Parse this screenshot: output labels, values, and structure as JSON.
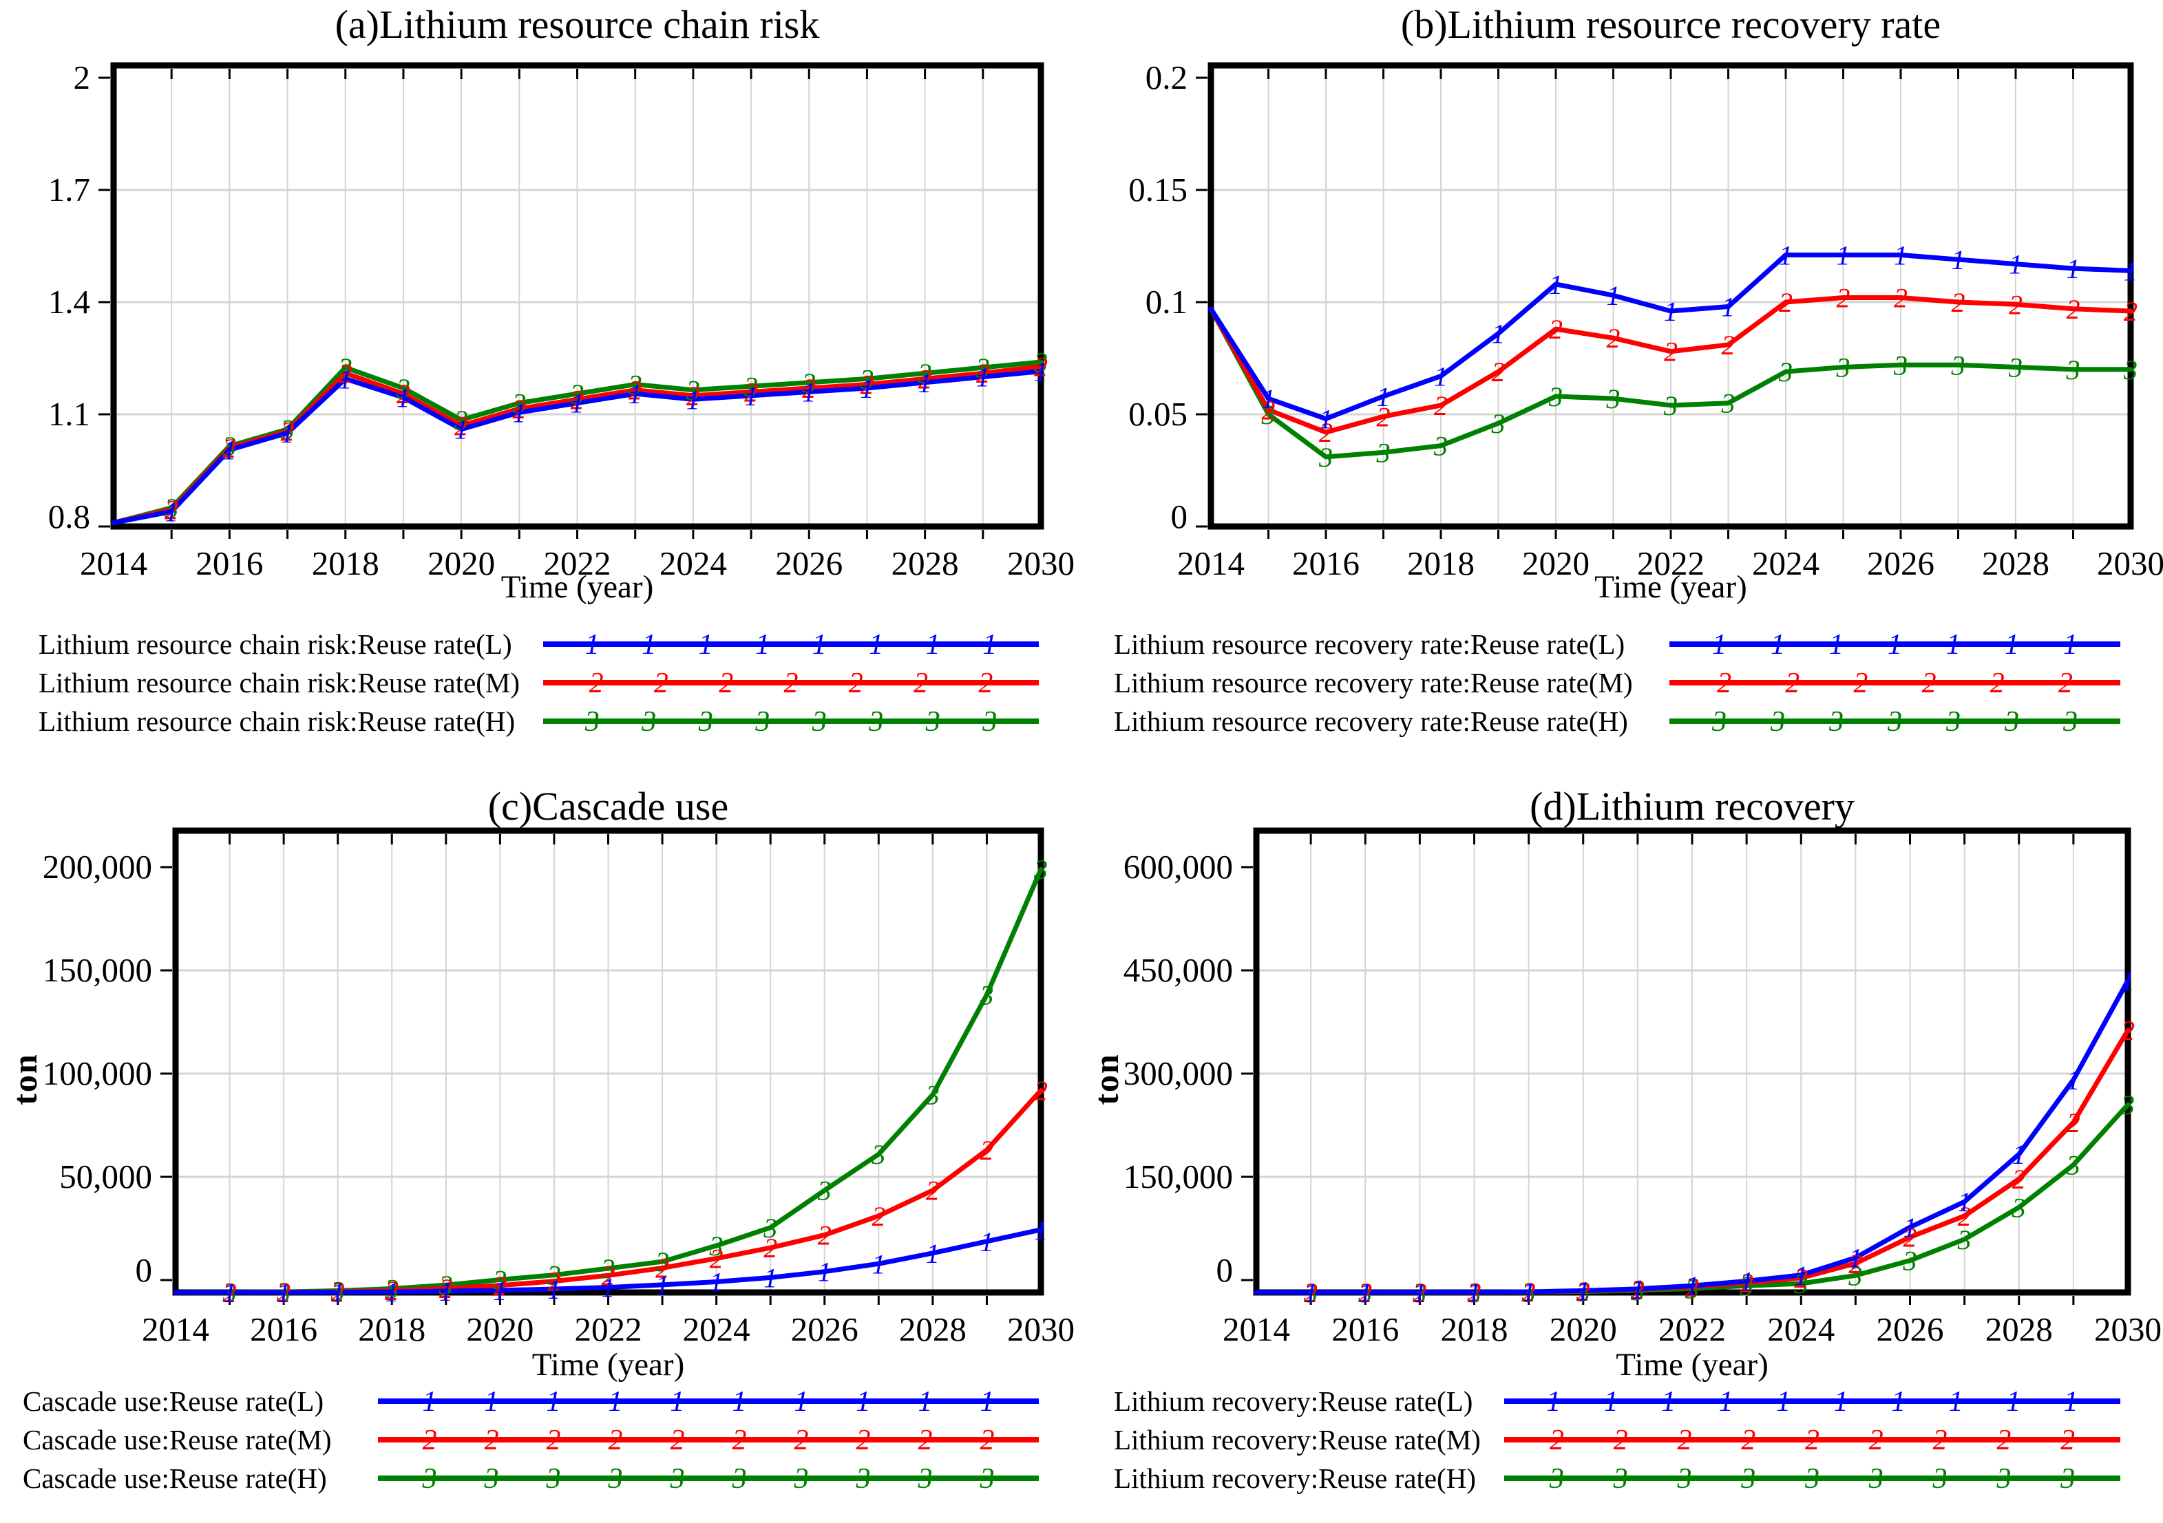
{
  "colors": {
    "axis": "#000000",
    "grid": "#d4d4d4",
    "reuse_low": "#0000ff",
    "reuse_mid": "#ff0000",
    "reuse_high": "#008000"
  },
  "chart_data": [
    {
      "type": "line",
      "title": "(a)Lithium resource chain risk",
      "xlabel": "Time (year)",
      "ylabel": "",
      "x": [
        2014,
        2015,
        2016,
        2017,
        2018,
        2019,
        2020,
        2021,
        2022,
        2023,
        2024,
        2025,
        2026,
        2027,
        2028,
        2029,
        2030
      ],
      "xtick_labels": [
        "2014",
        "2016",
        "2018",
        "2020",
        "2022",
        "2024",
        "2026",
        "2028",
        "2030"
      ],
      "ytick_labels": [
        "2",
        "1.7",
        "1.4",
        "1.1",
        "0.8"
      ],
      "ylim": [
        0.8,
        2.0
      ],
      "grid": true,
      "legend_position": "bottom",
      "legend_marker_counts": [
        8,
        7,
        8
      ],
      "series": [
        {
          "name": "Lithium resource chain risk:Reuse rate(L)",
          "marker": "1",
          "color": "#0000ff",
          "values": [
            0.81,
            0.84,
            1.005,
            1.05,
            1.195,
            1.145,
            1.06,
            1.105,
            1.13,
            1.155,
            1.14,
            1.15,
            1.16,
            1.17,
            1.185,
            1.2,
            1.215
          ]
        },
        {
          "name": "Lithium resource chain risk:Reuse rate(M)",
          "marker": "2",
          "color": "#ff0000",
          "values": [
            0.81,
            0.845,
            1.01,
            1.055,
            1.21,
            1.155,
            1.07,
            1.115,
            1.14,
            1.165,
            1.15,
            1.16,
            1.17,
            1.18,
            1.195,
            1.21,
            1.228
          ]
        },
        {
          "name": "Lithium resource chain risk:Reuse rate(H)",
          "marker": "3",
          "color": "#008000",
          "values": [
            0.81,
            0.85,
            1.015,
            1.06,
            1.225,
            1.17,
            1.085,
            1.13,
            1.155,
            1.18,
            1.165,
            1.175,
            1.185,
            1.195,
            1.21,
            1.225,
            1.24
          ]
        }
      ]
    },
    {
      "type": "line",
      "title": "(b)Lithium resource recovery rate",
      "xlabel": "Time (year)",
      "ylabel": "",
      "x": [
        2014,
        2015,
        2016,
        2017,
        2018,
        2019,
        2020,
        2021,
        2022,
        2023,
        2024,
        2025,
        2026,
        2027,
        2028,
        2029,
        2030
      ],
      "xtick_labels": [
        "2014",
        "2016",
        "2018",
        "2020",
        "2022",
        "2024",
        "2026",
        "2028",
        "2030"
      ],
      "ytick_labels": [
        "0.2",
        "0.15",
        "0.1",
        "0.05",
        "0"
      ],
      "ylim": [
        0,
        0.2
      ],
      "grid": true,
      "legend_position": "bottom",
      "legend_marker_counts": [
        7,
        6,
        7
      ],
      "series": [
        {
          "name": "Lithium resource recovery rate:Reuse rate(L)",
          "marker": "1",
          "color": "#0000ff",
          "values": [
            0.097,
            0.057,
            0.048,
            0.058,
            0.067,
            0.086,
            0.108,
            0.103,
            0.096,
            0.098,
            0.121,
            0.121,
            0.121,
            0.119,
            0.117,
            0.115,
            0.114
          ]
        },
        {
          "name": "Lithium resource recovery rate:Reuse rate(M)",
          "marker": "2",
          "color": "#ff0000",
          "values": [
            0.097,
            0.052,
            0.042,
            0.049,
            0.054,
            0.069,
            0.088,
            0.084,
            0.078,
            0.081,
            0.1,
            0.102,
            0.102,
            0.1,
            0.099,
            0.097,
            0.096
          ]
        },
        {
          "name": "Lithium resource recovery rate:Reuse rate(H)",
          "marker": "3",
          "color": "#008000",
          "values": [
            0.097,
            0.05,
            0.031,
            0.033,
            0.036,
            0.046,
            0.058,
            0.057,
            0.054,
            0.055,
            0.069,
            0.071,
            0.072,
            0.072,
            0.071,
            0.07,
            0.07
          ]
        }
      ]
    },
    {
      "type": "line",
      "title": "(c)Cascade use",
      "xlabel": "Time (year)",
      "ylabel": "ton",
      "x": [
        2014,
        2015,
        2016,
        2017,
        2018,
        2019,
        2020,
        2021,
        2022,
        2023,
        2024,
        2025,
        2026,
        2027,
        2028,
        2029,
        2030
      ],
      "xtick_labels": [
        "2014",
        "2016",
        "2018",
        "2020",
        "2022",
        "2024",
        "2026",
        "2028",
        "2030"
      ],
      "ytick_labels": [
        "200,000",
        "150,000",
        "100,000",
        "50,000",
        "0"
      ],
      "ylim": [
        0,
        200000
      ],
      "grid": true,
      "legend_position": "bottom",
      "legend_marker_counts": [
        10,
        10,
        10
      ],
      "series": [
        {
          "name": "Cascade use:Reuse rate(L)",
          "marker": "1",
          "color": "#0000ff",
          "values": [
            0,
            0,
            0,
            100,
            300,
            600,
            1000,
            1600,
            2400,
            3600,
            5000,
            7000,
            9800,
            13500,
            18500,
            24000,
            29500
          ]
        },
        {
          "name": "Cascade use:Reuse rate(M)",
          "marker": "2",
          "color": "#ff0000",
          "values": [
            0,
            0,
            100,
            300,
            900,
            1900,
            3300,
            5300,
            8000,
            11500,
            16000,
            21000,
            27000,
            36000,
            48000,
            67000,
            95000
          ]
        },
        {
          "name": "Cascade use:Reuse rate(H)",
          "marker": "3",
          "color": "#008000",
          "values": [
            0,
            100,
            300,
            800,
            1800,
            3500,
            6000,
            8200,
            11300,
            14500,
            22000,
            30500,
            48000,
            65000,
            93000,
            140000,
            199000
          ]
        }
      ]
    },
    {
      "type": "line",
      "title": "(d)Lithium recovery",
      "xlabel": "Time (year)",
      "ylabel": "ton",
      "x": [
        2014,
        2015,
        2016,
        2017,
        2018,
        2019,
        2020,
        2021,
        2022,
        2023,
        2024,
        2025,
        2026,
        2027,
        2028,
        2029,
        2030
      ],
      "xtick_labels": [
        "2014",
        "2016",
        "2018",
        "2020",
        "2022",
        "2024",
        "2026",
        "2028",
        "2030"
      ],
      "ytick_labels": [
        "600,000",
        "450,000",
        "300,000",
        "150,000",
        "0"
      ],
      "ylim": [
        0,
        600000
      ],
      "grid": true,
      "legend_position": "bottom",
      "legend_marker_counts": [
        10,
        9,
        9
      ],
      "series": [
        {
          "name": "Lithium recovery:Reuse rate(L)",
          "marker": "1",
          "color": "#0000ff",
          "values": [
            0,
            0,
            0,
            100,
            400,
            1000,
            2500,
            5000,
            9500,
            16000,
            24500,
            49000,
            92000,
            128000,
            195000,
            300000,
            440000
          ]
        },
        {
          "name": "Lithium recovery:Reuse rate(M)",
          "marker": "2",
          "color": "#ff0000",
          "values": [
            0,
            0,
            0,
            100,
            300,
            800,
            2000,
            4200,
            8000,
            13500,
            20500,
            41000,
            78000,
            108000,
            160000,
            240000,
            370000
          ]
        },
        {
          "name": "Lithium recovery:Reuse rate(H)",
          "marker": "3",
          "color": "#008000",
          "values": [
            0,
            0,
            0,
            0,
            200,
            500,
            1300,
            2800,
            5500,
            9500,
            12500,
            24000,
            45000,
            75000,
            120000,
            180000,
            265000
          ]
        }
      ]
    }
  ]
}
